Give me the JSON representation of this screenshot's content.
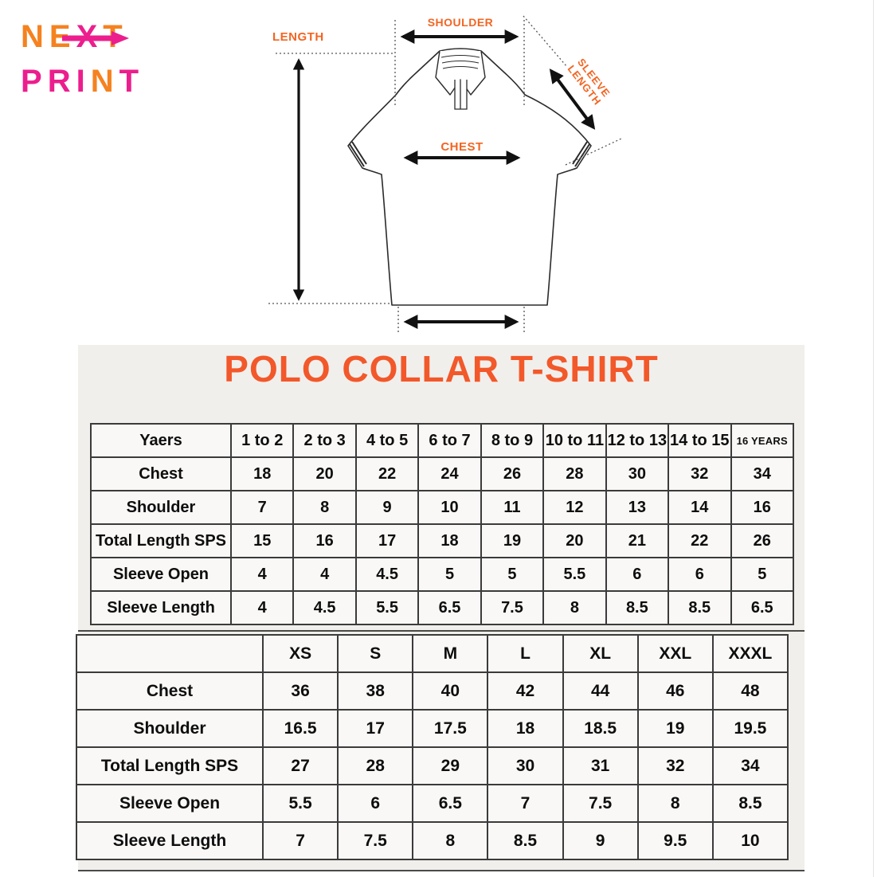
{
  "brand": {
    "line1": [
      "N",
      "E",
      "X",
      "T"
    ],
    "line2": [
      "P",
      "R",
      "I",
      "N",
      "T"
    ],
    "orange": "#f5821f",
    "pink": "#ec1e8d"
  },
  "diagram": {
    "length_label": "LENGTH",
    "shoulder_label": "SHOULDER",
    "chest_label": "CHEST",
    "sleeve_label_line1": "SLEEVE",
    "sleeve_label_line2": "LENGTH"
  },
  "panel": {
    "title": "POLO COLLAR T-SHIRT",
    "accent_color": "#f2582a"
  },
  "kids_table": {
    "header": [
      "Yaers",
      "1 to 2",
      "2 to 3",
      "4 to 5",
      "6 to 7",
      "8 to 9",
      "10 to 11",
      "12 to 13",
      "14 to 15",
      "16 YEARS"
    ],
    "small_header": "16 YEARS",
    "rows": [
      {
        "label": "Chest",
        "values": [
          "18",
          "20",
          "22",
          "24",
          "26",
          "28",
          "30",
          "32",
          "34"
        ]
      },
      {
        "label": "Shoulder",
        "values": [
          "7",
          "8",
          "9",
          "10",
          "11",
          "12",
          "13",
          "14",
          "16"
        ]
      },
      {
        "label": "Total Length SPS",
        "values": [
          "15",
          "16",
          "17",
          "18",
          "19",
          "20",
          "21",
          "22",
          "26"
        ]
      },
      {
        "label": "Sleeve Open",
        "values": [
          "4",
          "4",
          "4.5",
          "5",
          "5",
          "5.5",
          "6",
          "6",
          "5"
        ]
      },
      {
        "label": "Sleeve Length",
        "values": [
          "4",
          "4.5",
          "5.5",
          "6.5",
          "7.5",
          "8",
          "8.5",
          "8.5",
          "6.5"
        ]
      }
    ]
  },
  "adult_table": {
    "header": [
      "",
      "XS",
      "S",
      "M",
      "L",
      "XL",
      "XXL",
      "XXXL"
    ],
    "rows": [
      {
        "label": "Chest",
        "values": [
          "36",
          "38",
          "40",
          "42",
          "44",
          "46",
          "48"
        ]
      },
      {
        "label": "Shoulder",
        "values": [
          "16.5",
          "17",
          "17.5",
          "18",
          "18.5",
          "19",
          "19.5"
        ]
      },
      {
        "label": "Total Length SPS",
        "values": [
          "27",
          "28",
          "29",
          "30",
          "31",
          "32",
          "34"
        ]
      },
      {
        "label": "Sleeve Open",
        "values": [
          "5.5",
          "6",
          "6.5",
          "7",
          "7.5",
          "8",
          "8.5"
        ]
      },
      {
        "label": "Sleeve Length",
        "values": [
          "7",
          "7.5",
          "8",
          "8.5",
          "9",
          "9.5",
          "10"
        ]
      }
    ]
  }
}
